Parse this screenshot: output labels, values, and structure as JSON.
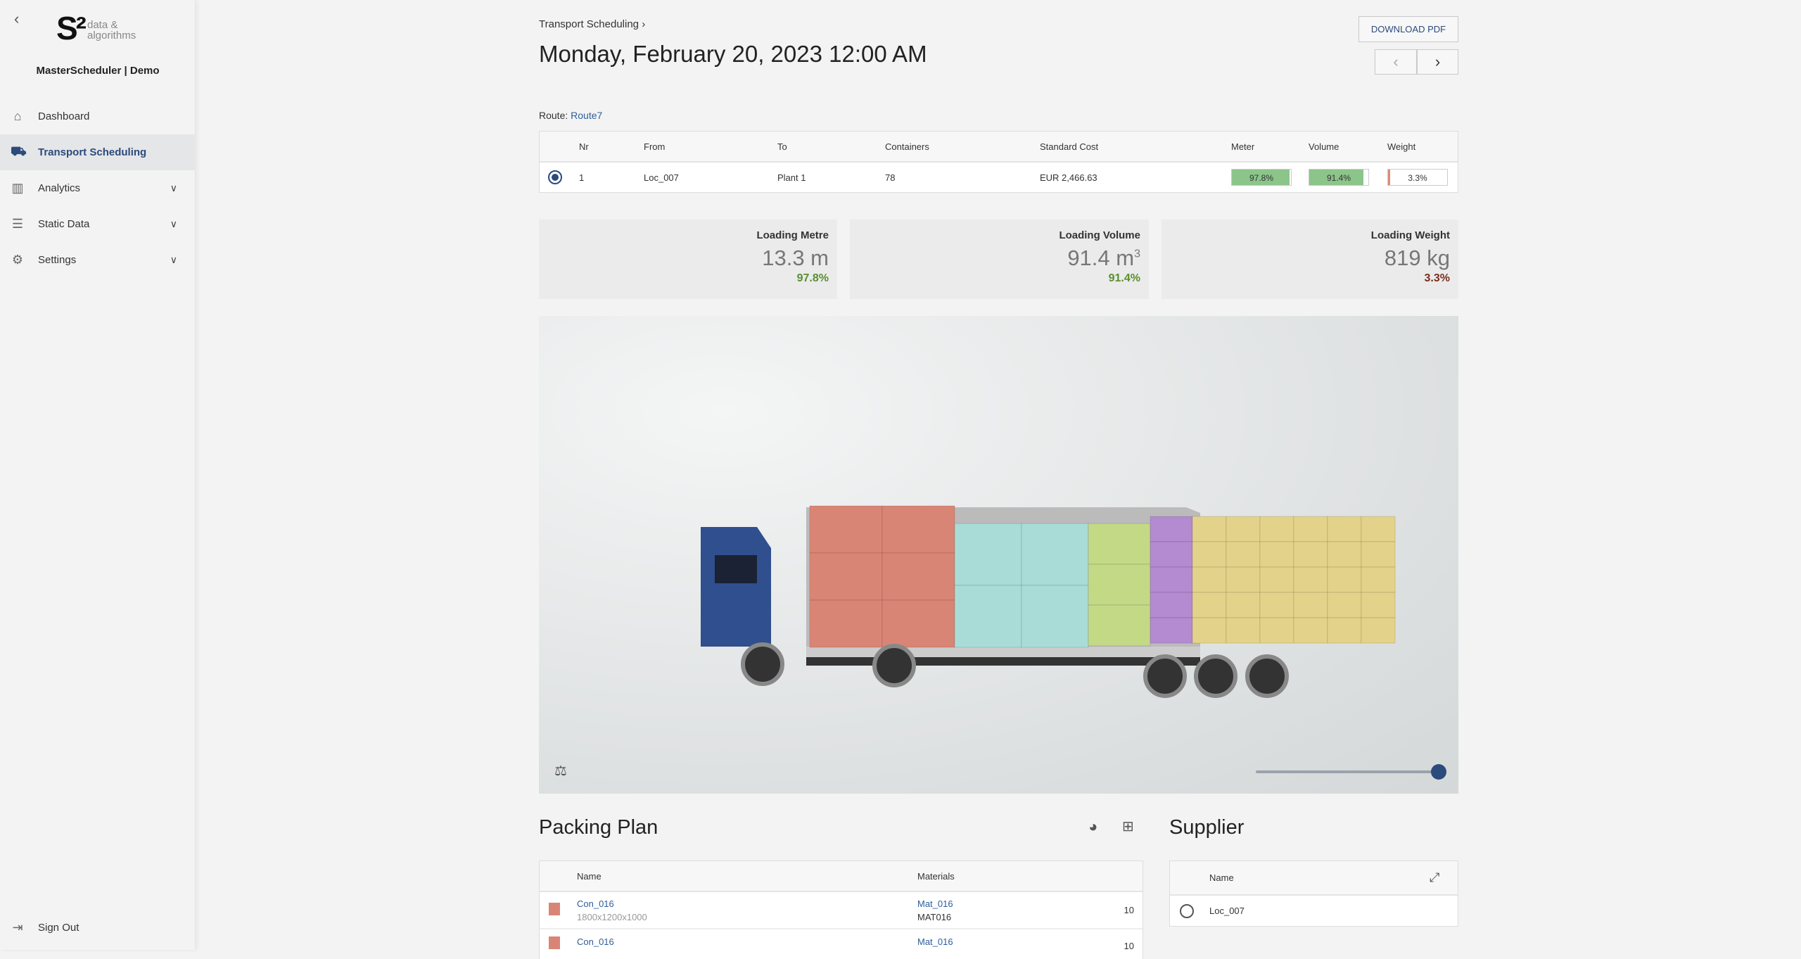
{
  "sidebar": {
    "back": "‹",
    "logo_mark": "S²",
    "logo_text_1": "data &",
    "logo_text_2": "algorithms",
    "app_name": "MasterScheduler | Demo",
    "items": [
      {
        "label": "Dashboard",
        "icon": "home-icon"
      },
      {
        "label": "Transport Scheduling",
        "icon": "truck-icon",
        "active": true
      },
      {
        "label": "Analytics",
        "icon": "chart-icon"
      },
      {
        "label": "Static Data",
        "icon": "database-icon"
      },
      {
        "label": "Settings",
        "icon": "gear-icon"
      }
    ],
    "sign_out": "Sign Out"
  },
  "header": {
    "breadcrumb": "Transport Scheduling",
    "breadcrumb_sep": "›",
    "title": "Monday, February 20, 2023 12:00 AM",
    "download": "DOWNLOAD PDF",
    "prev": "‹",
    "next": "›"
  },
  "route": {
    "label": "Route:",
    "value": "Route7"
  },
  "transport_table": {
    "columns": [
      "Nr",
      "From",
      "To",
      "Containers",
      "Standard Cost",
      "Meter",
      "Volume",
      "Weight"
    ],
    "rows": [
      {
        "nr": "1",
        "from": "Loc_007",
        "to": "Plant 1",
        "containers": "78",
        "cost": "EUR 2,466.63",
        "meter": "97.8%",
        "volume": "91.4%",
        "weight": "3.3%",
        "meter_pct": 97.8,
        "volume_pct": 91.4,
        "weight_pct": 3.3
      }
    ]
  },
  "cards": [
    {
      "label": "Loading Metre",
      "value": "13.3 m",
      "percent": "97.8%",
      "color": "#5a8f2e"
    },
    {
      "label": "Loading Volume",
      "value": "91.4 m",
      "sup": "3",
      "percent": "91.4%",
      "color": "#5a8f2e"
    },
    {
      "label": "Loading Weight",
      "value": "819 kg",
      "percent": "3.3%",
      "color": "#7a2e1e"
    }
  ],
  "viewer": {
    "slider_value": 100,
    "colors": {
      "salmon": "#d98575",
      "cyan": "#a9dcd6",
      "lime": "#c3d986",
      "purple": "#b48ad1",
      "yellow": "#e3d38a",
      "cab": "#2f4f8f"
    }
  },
  "packing_plan": {
    "title": "Packing Plan",
    "columns": [
      "Name",
      "Materials"
    ],
    "rows": [
      {
        "name": "Con_016",
        "dims": "1800x1200x1000",
        "material": "Mat_016",
        "material_code": "MAT016",
        "qty": "10",
        "color": "#d98575"
      },
      {
        "name": "Con_016",
        "dims": "",
        "material": "Mat_016",
        "material_code": "",
        "qty": "10",
        "color": "#d98575"
      }
    ]
  },
  "supplier": {
    "title": "Supplier",
    "columns": [
      "Name"
    ],
    "rows": [
      {
        "name": "Loc_007"
      }
    ]
  }
}
